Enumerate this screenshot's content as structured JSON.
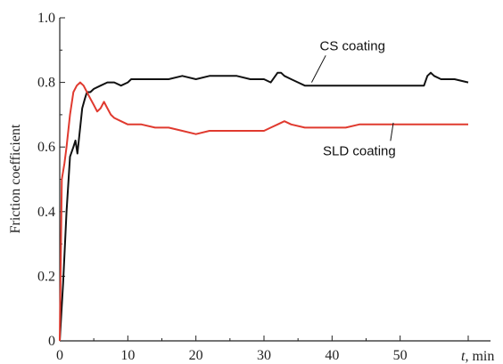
{
  "chart_data": {
    "type": "line",
    "xlabel_var": "t",
    "xlabel_unit": ", min",
    "ylabel": "Friction coefficient",
    "xlim": [
      0,
      60
    ],
    "ylim": [
      0,
      1.0
    ],
    "x_ticks": [
      "0",
      "10",
      "20",
      "30",
      "40",
      "50"
    ],
    "y_ticks": [
      "0",
      "0.2",
      "0.4",
      "0.6",
      "0.8",
      "1.0"
    ],
    "grid": false,
    "legend": "none",
    "series": [
      {
        "color": "#111111",
        "x": [
          0,
          0.5,
          1,
          1.5,
          2,
          2.3,
          2.6,
          3,
          3.3,
          3.7,
          4,
          4.5,
          5,
          6,
          7,
          8,
          9,
          10,
          10.5,
          11,
          12,
          14,
          16,
          18,
          20,
          22,
          24,
          26,
          28,
          30,
          31,
          32,
          32.5,
          33,
          34,
          35,
          36,
          38,
          40,
          42,
          44,
          46,
          48,
          50,
          52,
          53.5,
          54,
          54.5,
          55,
          56,
          57,
          58,
          60
        ],
        "y": [
          0.0,
          0.18,
          0.4,
          0.57,
          0.6,
          0.62,
          0.58,
          0.66,
          0.72,
          0.75,
          0.77,
          0.77,
          0.78,
          0.79,
          0.8,
          0.8,
          0.79,
          0.8,
          0.81,
          0.81,
          0.81,
          0.81,
          0.81,
          0.82,
          0.81,
          0.82,
          0.82,
          0.82,
          0.81,
          0.81,
          0.8,
          0.83,
          0.83,
          0.82,
          0.81,
          0.8,
          0.79,
          0.79,
          0.79,
          0.79,
          0.79,
          0.79,
          0.79,
          0.79,
          0.79,
          0.79,
          0.82,
          0.83,
          0.82,
          0.81,
          0.81,
          0.81,
          0.8
        ]
      },
      {
        "color": "#e03a2f",
        "x": [
          0,
          0.3,
          0.7,
          1,
          1.5,
          2,
          2.5,
          3,
          3.5,
          4,
          4.5,
          5,
          5.5,
          6,
          6.5,
          7,
          7.5,
          8,
          9,
          10,
          12,
          14,
          16,
          18,
          20,
          22,
          24,
          26,
          28,
          30,
          31,
          32,
          33,
          34,
          36,
          38,
          40,
          42,
          44,
          46,
          48,
          50,
          52,
          54,
          56,
          58,
          60
        ],
        "y": [
          0.0,
          0.5,
          0.55,
          0.6,
          0.7,
          0.77,
          0.79,
          0.8,
          0.79,
          0.77,
          0.75,
          0.73,
          0.71,
          0.72,
          0.74,
          0.72,
          0.7,
          0.69,
          0.68,
          0.67,
          0.67,
          0.66,
          0.66,
          0.65,
          0.64,
          0.65,
          0.65,
          0.65,
          0.65,
          0.65,
          0.66,
          0.67,
          0.68,
          0.67,
          0.66,
          0.66,
          0.66,
          0.66,
          0.67,
          0.67,
          0.67,
          0.67,
          0.67,
          0.67,
          0.67,
          0.67,
          0.67
        ]
      }
    ],
    "annotations": [
      {
        "text": "CS coating",
        "x": 43,
        "y": 0.9,
        "arrow_to": [
          37,
          0.8
        ]
      },
      {
        "text": "SLD coating",
        "x": 44,
        "y": 0.575,
        "arrow_to": [
          49,
          0.675
        ]
      }
    ]
  }
}
